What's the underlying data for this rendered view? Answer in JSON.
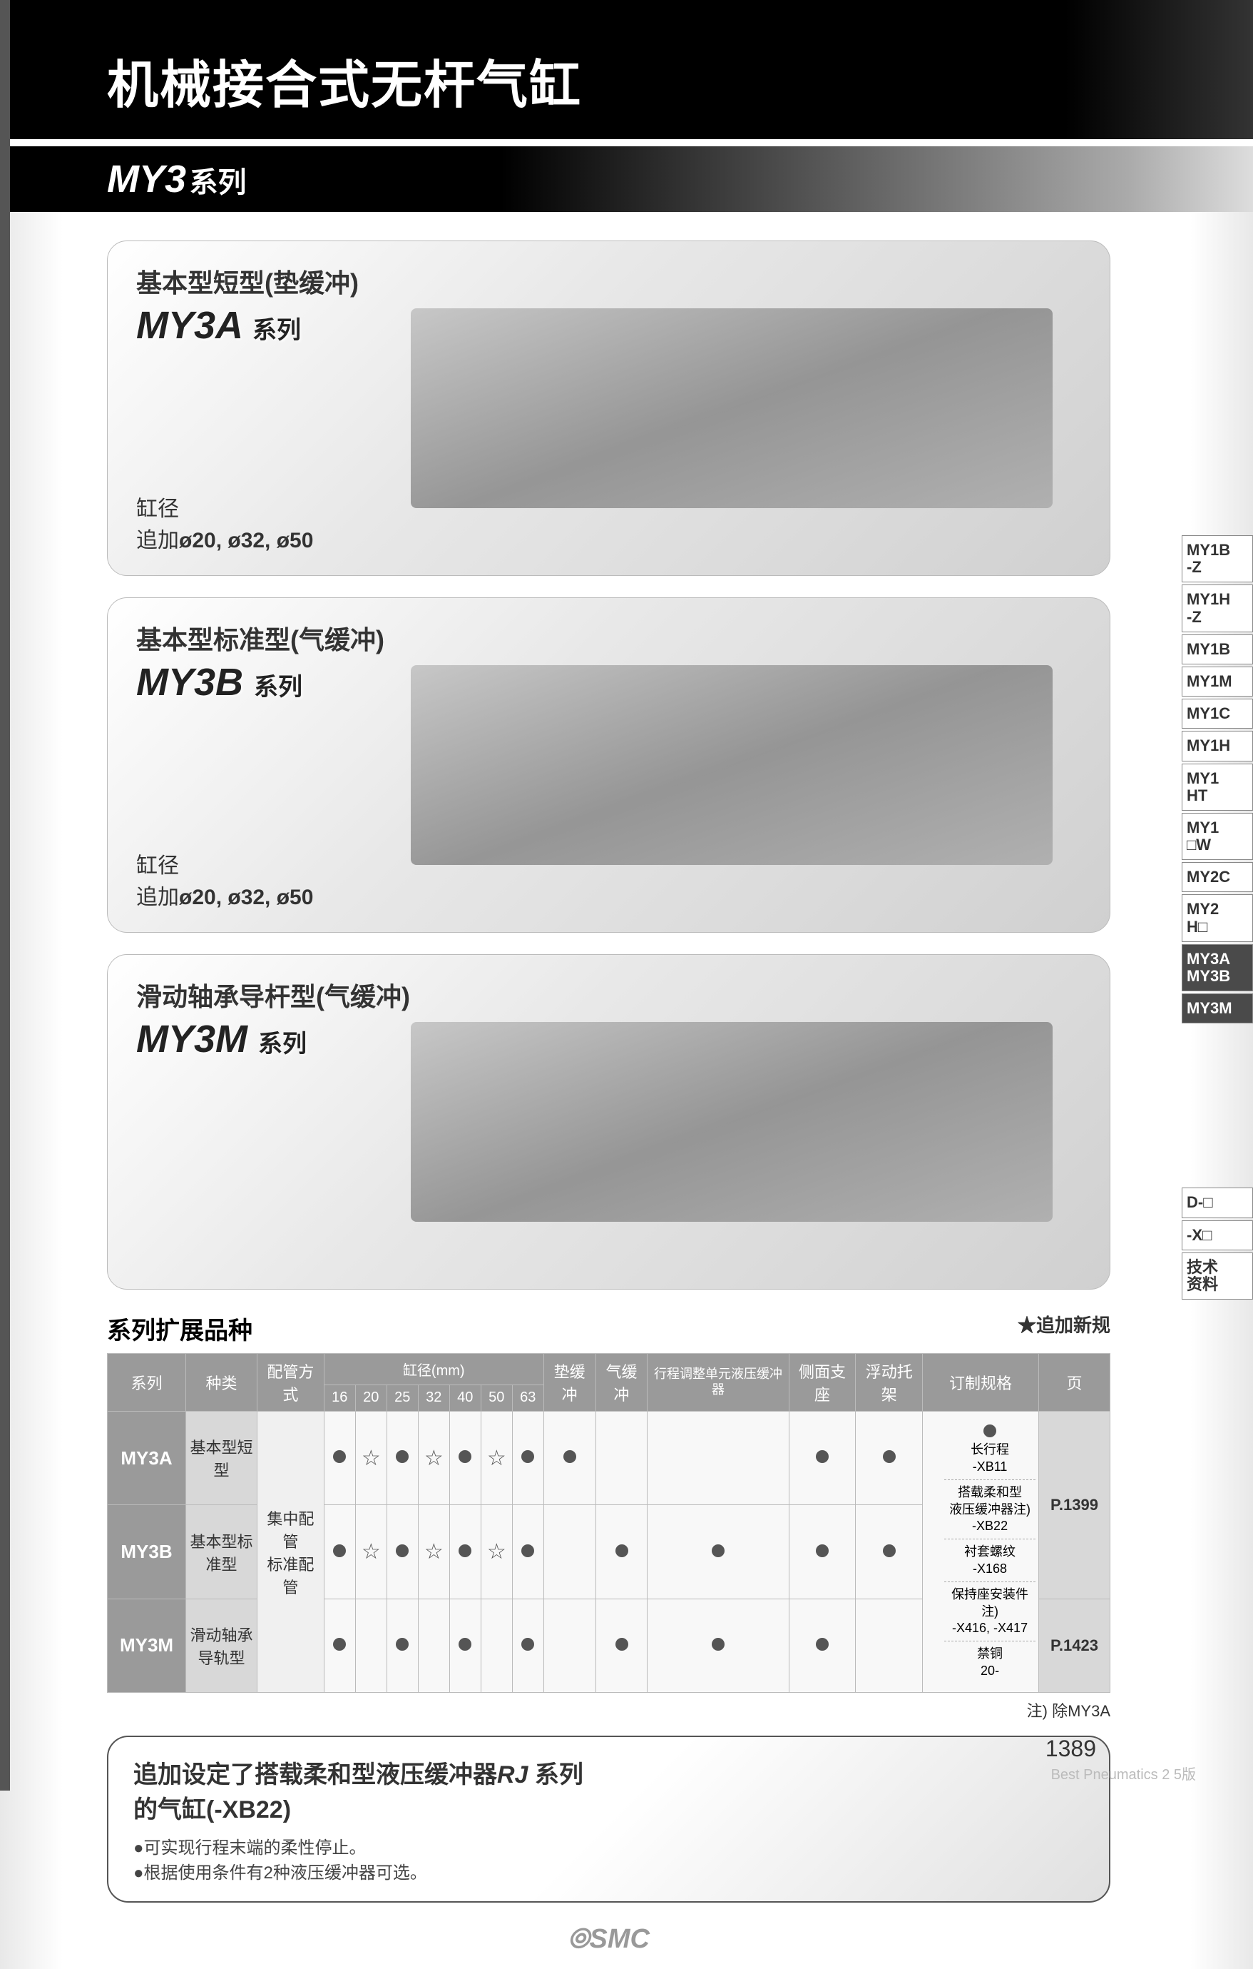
{
  "header": {
    "title": "机械接合式无杆气缸",
    "series": "MY3",
    "series_suffix": "系列"
  },
  "products": [
    {
      "label": "基本型短型(垫缓冲)",
      "series": "MY3A",
      "series_suffix": "系列",
      "bore_label": "缸径",
      "bore_addition": "追加",
      "bore_sizes": "ø20, ø32, ø50"
    },
    {
      "label": "基本型标准型(气缓冲)",
      "series": "MY3B",
      "series_suffix": "系列",
      "bore_label": "缸径",
      "bore_addition": "追加",
      "bore_sizes": "ø20, ø32, ø50"
    },
    {
      "label": "滑动轴承导杆型(气缓冲)",
      "series": "MY3M",
      "series_suffix": "系列",
      "bore_label": "",
      "bore_addition": "",
      "bore_sizes": ""
    }
  ],
  "lineup": {
    "section_title": "系列扩展品种",
    "new_marker": "★追加新规",
    "columns": {
      "series": "系列",
      "type": "种类",
      "piping": "配管方式",
      "bore_header": "缸径(mm)",
      "bores": [
        "16",
        "20",
        "25",
        "32",
        "40",
        "50",
        "63"
      ],
      "pad_cushion": "垫缓冲",
      "air_cushion": "气缓冲",
      "stroke_adj": "行程调整单元液压缓冲器",
      "side_support": "侧面支座",
      "float_bracket": "浮动托架",
      "made_to_order": "订制规格",
      "page": "页"
    },
    "rows": [
      {
        "series": "MY3A",
        "type": "基本型短型",
        "piping": "",
        "bores": [
          "dot",
          "star",
          "dot",
          "star",
          "dot",
          "star",
          "dot"
        ],
        "pad_cushion": "dot",
        "air_cushion": "",
        "stroke_adj": "",
        "side_support": "dot",
        "float_bracket": "dot",
        "page": "P.1399",
        "page_rowspan": 2
      },
      {
        "series": "MY3B",
        "type": "基本型标准型",
        "piping": "集中配管\n标准配管",
        "piping_rowspan": 2,
        "bores": [
          "dot",
          "star",
          "dot",
          "star",
          "dot",
          "star",
          "dot"
        ],
        "pad_cushion": "",
        "air_cushion": "dot",
        "stroke_adj": "dot",
        "side_support": "dot",
        "float_bracket": "dot",
        "page": ""
      },
      {
        "series": "MY3M",
        "type": "滑动轴承导轨型",
        "piping": "",
        "bores": [
          "dot",
          "",
          "dot",
          "",
          "dot",
          "",
          "dot"
        ],
        "pad_cushion": "",
        "air_cushion": "dot",
        "stroke_adj": "dot",
        "side_support": "dot",
        "float_bracket": "",
        "page": "P.1423"
      }
    ],
    "made_to_order_specs": [
      "长行程\n-XB11",
      "搭载柔和型\n液压缓冲器注)\n-XB22",
      "衬套螺纹\n-X168",
      "保持座安装件注)\n-X416, -X417",
      "禁铜\n20-"
    ],
    "table_note": "注) 除MY3A"
  },
  "bottom_box": {
    "title_part1": "追加设定了搭载柔和型液压缓冲器",
    "title_rj": "RJ",
    "title_part2": "系列",
    "title_line2": "的气缸(-XB22)",
    "bullets": [
      "●可实现行程末端的柔性停止。",
      "●根据使用条件有2种液压缓冲器可选。"
    ]
  },
  "footer": {
    "logo": "SMC",
    "page_num": "1389",
    "footer_text": "Best Pneumatics 2 5版"
  },
  "side_tabs": [
    {
      "label": "MY1B\n-Z",
      "active": false
    },
    {
      "label": "MY1H\n-Z",
      "active": false
    },
    {
      "label": "MY1B",
      "active": false
    },
    {
      "label": "MY1M",
      "active": false
    },
    {
      "label": "MY1C",
      "active": false
    },
    {
      "label": "MY1H",
      "active": false
    },
    {
      "label": "MY1\nHT",
      "active": false
    },
    {
      "label": "MY1\n□W",
      "active": false
    },
    {
      "label": "MY2C",
      "active": false
    },
    {
      "label": "MY2\nH□",
      "active": false
    },
    {
      "label": "MY3A\nMY3B",
      "active": true
    },
    {
      "label": "MY3M",
      "active": true
    },
    {
      "label": "D-□",
      "active": false,
      "gap": true
    },
    {
      "label": "-X□",
      "active": false
    },
    {
      "label": "技术\n资料",
      "active": false
    }
  ],
  "colors": {
    "header_bg": "#000000",
    "tab_active_bg": "#4a4a4a",
    "table_header_bg": "#9a9a9a",
    "dot_color": "#555555"
  }
}
